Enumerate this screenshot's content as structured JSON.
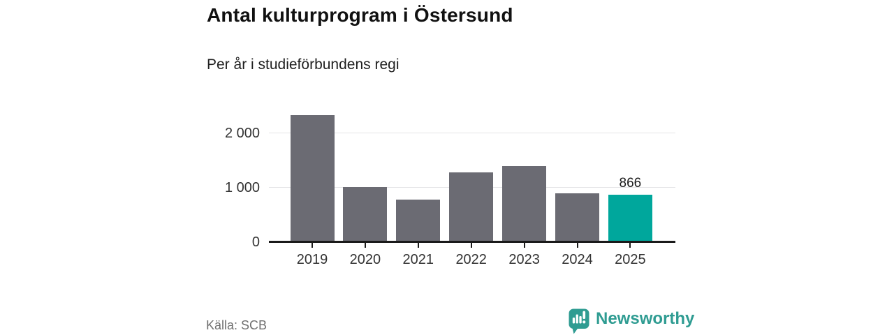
{
  "header": {
    "title": "Antal kulturprogram i Östersund",
    "subtitle": "Per år i studieförbundens regi"
  },
  "chart_data": {
    "type": "bar",
    "title": "Antal kulturprogram i Östersund",
    "subtitle": "Per år i studieförbundens regi",
    "categories": [
      "2019",
      "2020",
      "2021",
      "2022",
      "2023",
      "2024",
      "2025"
    ],
    "values": [
      2320,
      1010,
      780,
      1280,
      1395,
      900,
      866
    ],
    "highlighted_index": 6,
    "annotations": [
      {
        "index": 6,
        "text": "866"
      }
    ],
    "ylim": [
      0,
      2400
    ],
    "yticks": [
      0,
      1000,
      2000
    ],
    "ytick_labels": [
      "0",
      "1 000",
      "2 000"
    ],
    "grid": "horizontal",
    "legend": "none",
    "xlabel": "",
    "ylabel": ""
  },
  "colors": {
    "bg": "#ffffff",
    "bar": "#6b6b73",
    "highlight": "#00a79c",
    "gridline": "#e4e4e6",
    "axis": "#1a1a1a",
    "title_text": "#111111",
    "subtitle_text": "#1f1f1f",
    "tick_text": "#333333",
    "value_label_text": "#1a1a1a",
    "source_text": "#6f6f6f",
    "logo": "#2f9c92",
    "logo_glyph": "#ffffff"
  },
  "footer": {
    "source": "Källa: SCB",
    "brand": "Newsworthy"
  },
  "icons": {
    "logo": "newsworthy-bubble-chart-icon"
  }
}
